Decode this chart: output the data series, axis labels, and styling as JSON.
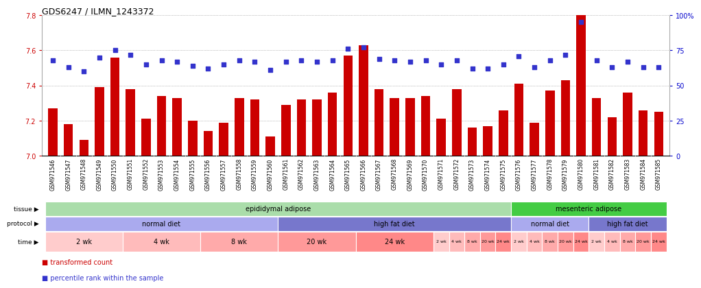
{
  "title": "GDS6247 / ILMN_1243372",
  "samples": [
    "GSM971546",
    "GSM971547",
    "GSM971548",
    "GSM971549",
    "GSM971550",
    "GSM971551",
    "GSM971552",
    "GSM971553",
    "GSM971554",
    "GSM971555",
    "GSM971556",
    "GSM971557",
    "GSM971558",
    "GSM971559",
    "GSM971560",
    "GSM971561",
    "GSM971562",
    "GSM971563",
    "GSM971564",
    "GSM971565",
    "GSM971566",
    "GSM971567",
    "GSM971568",
    "GSM971569",
    "GSM971570",
    "GSM971571",
    "GSM971572",
    "GSM971573",
    "GSM971574",
    "GSM971575",
    "GSM971576",
    "GSM971577",
    "GSM971578",
    "GSM971579",
    "GSM971580",
    "GSM971581",
    "GSM971582",
    "GSM971583",
    "GSM971584",
    "GSM971585"
  ],
  "bar_values": [
    7.27,
    7.18,
    7.09,
    7.39,
    7.56,
    7.38,
    7.21,
    7.34,
    7.33,
    7.2,
    7.14,
    7.19,
    7.33,
    7.32,
    7.11,
    7.29,
    7.32,
    7.32,
    7.36,
    7.57,
    7.63,
    7.38,
    7.33,
    7.33,
    7.34,
    7.21,
    7.38,
    7.16,
    7.17,
    7.26,
    7.41,
    7.19,
    7.37,
    7.43,
    7.8,
    7.33,
    7.22,
    7.36,
    7.26,
    7.25
  ],
  "dot_values": [
    68,
    63,
    60,
    70,
    75,
    72,
    65,
    68,
    67,
    64,
    62,
    65,
    68,
    67,
    61,
    67,
    68,
    67,
    68,
    76,
    77,
    69,
    68,
    67,
    68,
    65,
    68,
    62,
    62,
    65,
    71,
    63,
    68,
    72,
    95,
    68,
    63,
    67,
    63,
    63
  ],
  "ylim_left": [
    7.0,
    7.8
  ],
  "ylim_right": [
    0,
    100
  ],
  "yticks_left": [
    7.0,
    7.2,
    7.4,
    7.6,
    7.8
  ],
  "yticks_right": [
    0,
    25,
    50,
    75,
    100
  ],
  "bar_color": "#cc0000",
  "dot_color": "#3333cc",
  "bar_baseline": 7.0,
  "tissue_groups": [
    {
      "label": "epididymal adipose",
      "start": 0,
      "end": 29,
      "color": "#aaddaa"
    },
    {
      "label": "mesenteric adipose",
      "start": 30,
      "end": 39,
      "color": "#44cc44"
    }
  ],
  "protocol_groups": [
    {
      "label": "normal diet",
      "start": 0,
      "end": 14,
      "color": "#aaaaee"
    },
    {
      "label": "high fat diet",
      "start": 15,
      "end": 29,
      "color": "#7777cc"
    },
    {
      "label": "normal diet",
      "start": 30,
      "end": 34,
      "color": "#aaaaee"
    },
    {
      "label": "high fat diet",
      "start": 35,
      "end": 39,
      "color": "#7777cc"
    }
  ],
  "time_groups": [
    {
      "label": "2 wk",
      "start": 0,
      "end": 4,
      "color": "#ffcccc"
    },
    {
      "label": "4 wk",
      "start": 5,
      "end": 9,
      "color": "#ffbbbb"
    },
    {
      "label": "8 wk",
      "start": 10,
      "end": 14,
      "color": "#ffaaaa"
    },
    {
      "label": "20 wk",
      "start": 15,
      "end": 19,
      "color": "#ff9999"
    },
    {
      "label": "24 wk",
      "start": 20,
      "end": 24,
      "color": "#ff8888"
    },
    {
      "label": "2 wk",
      "start": 25,
      "end": 25,
      "color": "#ffcccc"
    },
    {
      "label": "4 wk",
      "start": 26,
      "end": 26,
      "color": "#ffbbbb"
    },
    {
      "label": "8 wk",
      "start": 27,
      "end": 27,
      "color": "#ffaaaa"
    },
    {
      "label": "20 wk",
      "start": 28,
      "end": 28,
      "color": "#ff9999"
    },
    {
      "label": "24 wk",
      "start": 29,
      "end": 29,
      "color": "#ff8888"
    },
    {
      "label": "2 wk",
      "start": 30,
      "end": 30,
      "color": "#ffcccc"
    },
    {
      "label": "4 wk",
      "start": 31,
      "end": 31,
      "color": "#ffbbbb"
    },
    {
      "label": "8 wk",
      "start": 32,
      "end": 32,
      "color": "#ffaaaa"
    },
    {
      "label": "20 wk",
      "start": 33,
      "end": 33,
      "color": "#ff9999"
    },
    {
      "label": "24 wk",
      "start": 34,
      "end": 34,
      "color": "#ff8888"
    },
    {
      "label": "2 wk",
      "start": 35,
      "end": 35,
      "color": "#ffcccc"
    },
    {
      "label": "4 wk",
      "start": 36,
      "end": 36,
      "color": "#ffbbbb"
    },
    {
      "label": "8 wk",
      "start": 37,
      "end": 37,
      "color": "#ffaaaa"
    },
    {
      "label": "20 wk",
      "start": 38,
      "end": 38,
      "color": "#ff9999"
    },
    {
      "label": "24 wk",
      "start": 39,
      "end": 39,
      "color": "#ff8888"
    }
  ],
  "bg_color": "#ffffff",
  "plot_bg_color": "#ffffff",
  "grid_color": "#888888",
  "axis_color_left": "#cc0000",
  "axis_color_right": "#0000cc",
  "xtick_bg": "#cccccc"
}
